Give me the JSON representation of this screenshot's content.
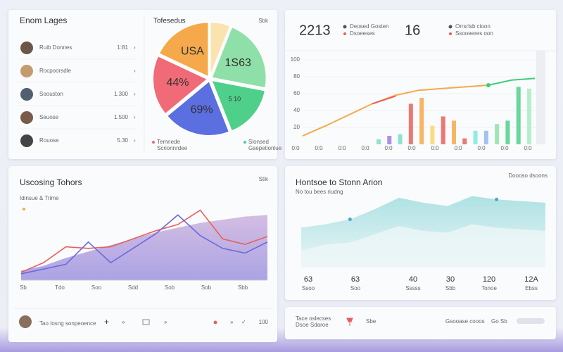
{
  "left_panel": {
    "title": "Enom Lages",
    "rows": [
      {
        "name": "Ruib Donnes",
        "value": "1:81"
      },
      {
        "name": "Rocpoorsdle"
      },
      {
        "name": "Soouston",
        "value": "1.300"
      },
      {
        "name": "Seuose",
        "value": "1.500"
      },
      {
        "name": "Rouose",
        "value": "5.30"
      }
    ]
  },
  "pie": {
    "title": "Tofesedus",
    "corner": "Sbk",
    "values": [
      6,
      22,
      16,
      20,
      18,
      18
    ],
    "labels": [
      null,
      "1S63",
      "5 10",
      "69%",
      "44%",
      "USA"
    ],
    "colors": [
      "#fbe3b0",
      "#8fe0a8",
      "#4fd08a",
      "#5b6fe0",
      "#f06a78",
      "#f5a94a"
    ],
    "legend": [
      {
        "name": "Temnede",
        "sub": "Scrionnrdee",
        "color": "#f06a78"
      },
      {
        "name": "Slonsed",
        "sub": "Gsepetionlue",
        "color": "#4fd08a"
      }
    ]
  },
  "top_stats": [
    {
      "value": "2213",
      "label": "Deosed Gosten",
      "sub": "Dsoeeses"
    },
    {
      "value": "16",
      "label": "Orrsrlsb cioon",
      "sub": "Ssooeeres oon"
    }
  ],
  "top_chart": {
    "ylim": [
      0,
      100
    ],
    "yticks": [
      20,
      40,
      60,
      80,
      100
    ],
    "xticks": [
      "0:0",
      "0:0",
      "0:0",
      "0:0",
      "0:0",
      "0:0",
      "0:0",
      "0:0",
      "0:0",
      "0:0",
      "0:0"
    ],
    "lines": [
      {
        "color": "#f5a94a",
        "values": [
          10,
          22,
          35,
          48,
          58,
          64,
          66,
          68,
          70,
          null,
          null
        ]
      },
      {
        "color": "#e8605c",
        "values": [
          null,
          null,
          null,
          48,
          57,
          null,
          null,
          null,
          null,
          null,
          null
        ]
      },
      {
        "color": "#3ccf7a",
        "values": [
          null,
          null,
          null,
          null,
          null,
          null,
          null,
          null,
          70,
          76,
          78
        ]
      }
    ],
    "bars": {
      "values": [
        6,
        10,
        12,
        48,
        55,
        22,
        33,
        28,
        7,
        16,
        16,
        24,
        28,
        68,
        66
      ],
      "colors": [
        "#7fdcc8",
        "#9b7fe0",
        "#7fdcc8",
        "#e8605c",
        "#f5a94a",
        "#fcd56b",
        "#e8605c",
        "#f5a94a",
        "#e8605c",
        "#7fe8e0",
        "#8fb8f0",
        "#8fe0a8",
        "#4fd08a",
        "#4fd08a",
        "#a8ecc0"
      ]
    }
  },
  "bottom_left": {
    "title": "Uscosing Tohors",
    "corner": "Stik",
    "subtitle": "Idinsue & Trime",
    "ylim": [
      0,
      100
    ],
    "xticks": [
      "Sb",
      "Tdo",
      "Soo",
      "Sdd",
      "Sob",
      "Sob",
      "Sbb"
    ],
    "area": [
      12,
      18,
      28,
      36,
      44,
      52,
      60,
      66,
      72,
      76,
      80,
      82
    ],
    "lines": [
      {
        "color": "#e8605c",
        "values": [
          10,
          22,
          42,
          40,
          42,
          52,
          62,
          70,
          88,
          52,
          45,
          55
        ]
      },
      {
        "color": "#6a6ae0",
        "values": [
          8,
          14,
          20,
          48,
          22,
          40,
          58,
          82,
          56,
          40,
          34,
          48
        ]
      }
    ],
    "footer": {
      "label": "Tao Iosng sonpeoence",
      "value": "100"
    }
  },
  "bottom_right": {
    "title": "Hontsoe to Stonn Arion",
    "subtitle": "No tou bees riudng",
    "corner": "Doooso dsoons",
    "ylim": [
      0,
      100
    ],
    "area": [
      48,
      52,
      58,
      70,
      84,
      78,
      74,
      86,
      82,
      80,
      78
    ],
    "area2": [
      20,
      28,
      30,
      40,
      50,
      44,
      42,
      52,
      48,
      46,
      44
    ],
    "stats": [
      {
        "value": "63",
        "label": "Ssoo"
      },
      {
        "value": "63",
        "label": "Soo"
      },
      {
        "value": "40",
        "label": "Sssss"
      },
      {
        "value": "30",
        "label": "Sbb"
      },
      {
        "value": "120",
        "label": "Tonoe"
      },
      {
        "value": "12A",
        "label": "Ebss"
      }
    ]
  },
  "footer_right": {
    "title": "Tace oslecses",
    "sub": "Dsoe Sdaroe",
    "tag": "Sbe",
    "info": "Gsooase cooos",
    "badge": "Go Sb"
  }
}
